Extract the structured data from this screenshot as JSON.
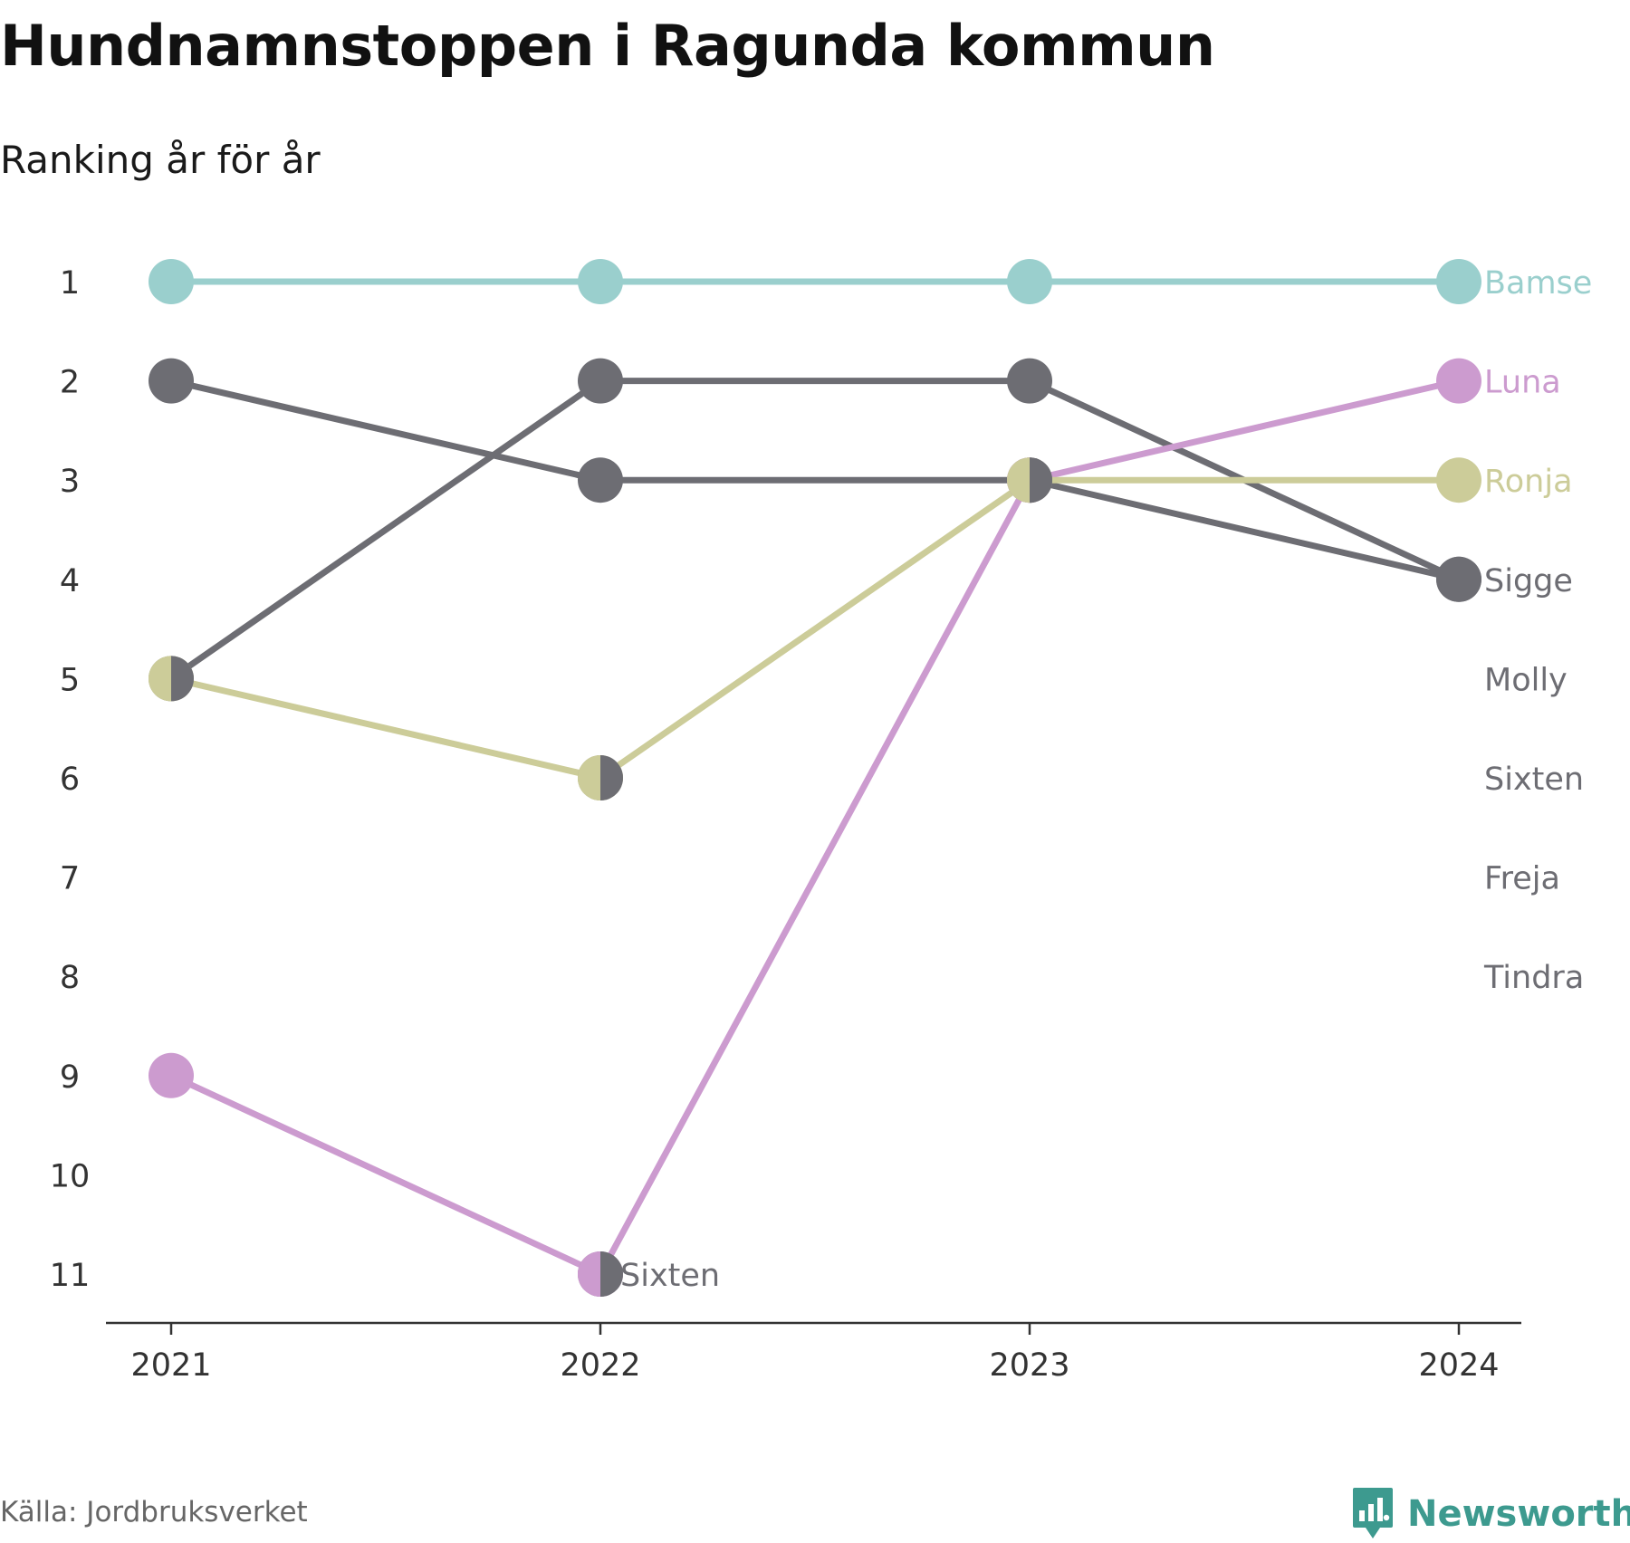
{
  "title": "Hundnamnstoppen i Ragunda kommun",
  "subtitle": "Ranking år för år",
  "source": "Källa: Jordbruksverket",
  "logo": {
    "name": "Newsworthy",
    "color": "#3d9a8f"
  },
  "chart_data": {
    "type": "line",
    "subtype": "bump",
    "x": [
      "2021",
      "2022",
      "2023",
      "2024"
    ],
    "y_ticks": [
      1,
      2,
      3,
      4,
      5,
      6,
      7,
      8,
      9,
      10,
      11
    ],
    "ylim": [
      1,
      11
    ],
    "y_inverted": true,
    "grid": false,
    "series": [
      {
        "name": "Bamse",
        "color": "#9acfcd",
        "ranks": [
          1,
          1,
          1,
          1
        ]
      },
      {
        "name": "Luna",
        "color": "#cc9bcf",
        "ranks": [
          9,
          11,
          3,
          2
        ]
      },
      {
        "name": "Ronja",
        "color": "#cccc99",
        "ranks": [
          5,
          6,
          3,
          3
        ]
      },
      {
        "name": "Sigge",
        "color": "#6d6d73",
        "ranks": [
          5,
          2,
          2,
          4
        ]
      },
      {
        "name": "Molly",
        "color": "#6d6d73",
        "ranks": [
          2,
          3,
          3,
          4
        ]
      },
      {
        "name": "Sixten",
        "color": "#6d6d73",
        "ranks": [
          null,
          11,
          null,
          null
        ]
      },
      {
        "name": "Freja",
        "color": "#6d6d73",
        "ranks": [
          null,
          6,
          null,
          null
        ]
      },
      {
        "name": "Tindra",
        "color": "#6d6d73",
        "ranks": [
          null,
          null,
          null,
          null
        ]
      }
    ],
    "end_labels": [
      {
        "text": "Bamse",
        "rank": 1,
        "color": "#9acfcd"
      },
      {
        "text": "Luna",
        "rank": 2,
        "color": "#cc9bcf"
      },
      {
        "text": "Ronja",
        "rank": 3,
        "color": "#cccc99"
      },
      {
        "text": "Sigge",
        "rank": 4,
        "color": "#6d6d73"
      },
      {
        "text": "Molly",
        "rank": 5,
        "color": "#6d6d73"
      },
      {
        "text": "Sixten",
        "rank": 6,
        "color": "#6d6d73"
      },
      {
        "text": "Freja",
        "rank": 7,
        "color": "#6d6d73"
      },
      {
        "text": "Tindra",
        "rank": 8,
        "color": "#6d6d73"
      }
    ],
    "point_annotations": [
      {
        "text": "Sixten",
        "x": "2022",
        "rank": 11,
        "color": "#6d6d73"
      }
    ]
  }
}
